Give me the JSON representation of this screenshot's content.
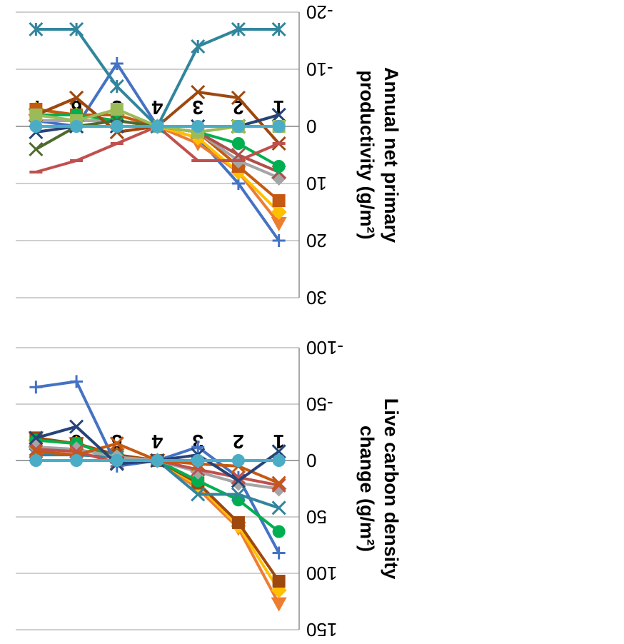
{
  "figure": {
    "orientation": "rotated 180 degrees (upside down)",
    "description": "Two stacked line charts, rendered upside down in the screenshot"
  },
  "chart_data": [
    {
      "type": "line",
      "title": "",
      "xlabel": "",
      "ylabel": "Annual net primary productivity (g/m²)",
      "ylabel_lines": [
        "Annual net primary",
        "productivity (g/m²)"
      ],
      "categories": [
        "1",
        "2",
        "3",
        "4",
        "5",
        "6",
        "7"
      ],
      "ylim": [
        -20,
        30
      ],
      "yticks": [
        -20,
        -10,
        0,
        10,
        20,
        30
      ],
      "ytick_labels": [
        "-20",
        "-10",
        "0",
        "10",
        "20",
        "30"
      ],
      "grid": true,
      "legend": "none",
      "series": [
        {
          "color": "#4472C4",
          "marker": "plus",
          "values": [
            20,
            10,
            2,
            0,
            -11,
            0,
            -1
          ]
        },
        {
          "color": "#ED7D31",
          "marker": "triangle",
          "values": [
            17,
            8,
            3,
            0,
            -1,
            -1,
            -1
          ]
        },
        {
          "color": "#FFC000",
          "marker": "diamond",
          "values": [
            15,
            8,
            2,
            0,
            -1,
            -2,
            -3
          ]
        },
        {
          "color": "#C65911",
          "marker": "square",
          "values": [
            13,
            7,
            1,
            0,
            -2,
            -2,
            -3
          ]
        },
        {
          "color": "#A5A5A5",
          "marker": "diamond",
          "values": [
            9,
            6,
            1,
            0,
            -1,
            -1,
            -1
          ]
        },
        {
          "color": "#AD4F4B",
          "marker": "x",
          "values": [
            8,
            5,
            1,
            0,
            1,
            -5,
            -2
          ]
        },
        {
          "color": "#00B050",
          "marker": "circle",
          "values": [
            7,
            3,
            1,
            0,
            -1,
            -2,
            -2
          ]
        },
        {
          "color": "#9E480E",
          "marker": "x",
          "values": [
            3,
            -5,
            -6,
            0,
            1,
            -5,
            -2
          ]
        },
        {
          "color": "#C0504D",
          "marker": "dash",
          "values": [
            3,
            6,
            6,
            0,
            3,
            6,
            8
          ]
        },
        {
          "color": "#4E6B2E",
          "marker": "x",
          "values": [
            -2,
            0,
            0,
            0,
            -1,
            0,
            4
          ]
        },
        {
          "color": "#264478",
          "marker": "x",
          "values": [
            -2,
            0,
            0,
            0,
            0,
            0,
            1
          ]
        },
        {
          "color": "#9BBB59",
          "marker": "square",
          "values": [
            0,
            0,
            1,
            0,
            -3,
            -1,
            -2
          ]
        },
        {
          "color": "#31859C",
          "marker": "asterisk",
          "values": [
            -17,
            -17,
            -14,
            0,
            -7,
            -17,
            -17
          ]
        },
        {
          "color": "#4BACC6",
          "marker": "circle",
          "values": [
            0,
            0,
            0,
            0,
            0,
            0,
            0
          ]
        }
      ]
    },
    {
      "type": "line",
      "title": "",
      "xlabel": "",
      "ylabel": "Live carbon density change (g/m²)",
      "ylabel_lines": [
        "Live carbon density",
        "change (g/m²)"
      ],
      "categories": [
        "1",
        "2",
        "3",
        "4",
        "5",
        "6",
        "7"
      ],
      "ylim": [
        -100,
        150
      ],
      "yticks": [
        -100,
        -50,
        0,
        50,
        100,
        150
      ],
      "ytick_labels": [
        "-100",
        "-50",
        "0",
        "50",
        "100",
        "150"
      ],
      "grid": true,
      "legend": "none",
      "series": [
        {
          "color": "#ED7D31",
          "marker": "triangle",
          "values": [
            127,
            60,
            25,
            0,
            -5,
            -15,
            -20
          ]
        },
        {
          "color": "#FFC000",
          "marker": "diamond",
          "values": [
            115,
            58,
            22,
            0,
            -5,
            -15,
            -18
          ]
        },
        {
          "color": "#9E480E",
          "marker": "square",
          "values": [
            107,
            55,
            20,
            0,
            -5,
            -15,
            -20
          ]
        },
        {
          "color": "#4472C4",
          "marker": "plus",
          "values": [
            82,
            15,
            -12,
            0,
            5,
            -70,
            -65
          ]
        },
        {
          "color": "#00B050",
          "marker": "circle",
          "values": [
            63,
            35,
            18,
            0,
            -3,
            -15,
            -18
          ]
        },
        {
          "color": "#31859C",
          "marker": "x",
          "values": [
            42,
            30,
            30,
            0,
            -3,
            -5,
            -5
          ]
        },
        {
          "color": "#A5A5A5",
          "marker": "diamond",
          "values": [
            25,
            20,
            10,
            0,
            -3,
            -10,
            -12
          ]
        },
        {
          "color": "#C0504D",
          "marker": "x",
          "values": [
            22,
            15,
            8,
            0,
            2,
            -8,
            -10
          ]
        },
        {
          "color": "#C65911",
          "marker": "x",
          "values": [
            20,
            5,
            3,
            0,
            -15,
            -5,
            -8
          ]
        },
        {
          "color": "#264478",
          "marker": "x",
          "values": [
            -8,
            18,
            -5,
            0,
            3,
            -30,
            -20
          ]
        },
        {
          "color": "#4BACC6",
          "marker": "circle",
          "values": [
            0,
            0,
            0,
            0,
            0,
            0,
            0
          ]
        }
      ]
    }
  ]
}
